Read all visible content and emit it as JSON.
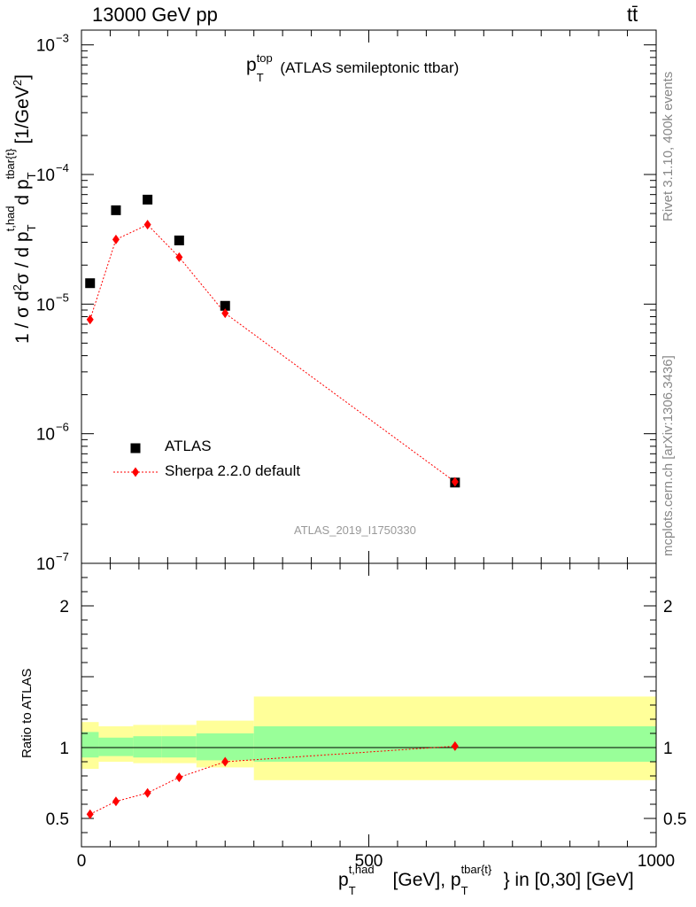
{
  "header": {
    "energy_label": "13000 GeV pp",
    "process_label": "tt̄"
  },
  "annotation": {
    "var": "p",
    "sub": "T",
    "sup": "top",
    "desc": "(ATLAS semileptonic ttbar)"
  },
  "side_labels": {
    "rivet": "Rivet 3.1.10,  400k events",
    "mcplots": "mcplots.cern.ch [arXiv:1306.3436]"
  },
  "analysis_id": "ATLAS_2019_I1750330",
  "axes": {
    "main_ylabel": {
      "p1": "1 / σ d",
      "s1": "2",
      "p2": "σ / d p",
      "sup_a": "t,had",
      "sub_a": "T",
      "p3": " d p",
      "sup_b": "tbar{t}",
      "sub_b": "T",
      "p4": " [1/GeV",
      "s2": "2",
      "p5": "]"
    },
    "ratio_ylabel": "Ratio to ATLAS",
    "xlabel": {
      "p1": "p",
      "sup1": "t,had",
      "sub1": "T",
      "p2": " [GeV], p",
      "sup2": "tbar{t}",
      "sub2": "T",
      "p3": "} in [0,30] [GeV]"
    }
  },
  "legend": {
    "data_label": "ATLAS",
    "mc_label": "Sherpa 2.2.0 default"
  },
  "colors": {
    "data": "#000000",
    "mc": "#ff0000",
    "band_inner": "#99ff99",
    "band_outer": "#ffff99"
  },
  "chart_data": [
    {
      "type": "scatter",
      "panel": "main",
      "scale_y": "log",
      "xlim": [
        0,
        1000
      ],
      "ylim": [
        1e-07,
        0.0013
      ],
      "y_ticks": [
        1e-07,
        1e-06,
        1e-05,
        0.0001,
        0.001
      ],
      "y_tick_labels": [
        {
          "base": "10",
          "exp": "−7"
        },
        {
          "base": "10",
          "exp": "−6"
        },
        {
          "base": "10",
          "exp": "−5"
        },
        {
          "base": "10",
          "exp": "−4"
        },
        {
          "base": "10",
          "exp": "−3"
        }
      ],
      "series": [
        {
          "name": "ATLAS",
          "marker": "square",
          "x": [
            15,
            60,
            115,
            170,
            250,
            650
          ],
          "y": [
            1.45e-05,
            5.3e-05,
            6.4e-05,
            3.1e-05,
            9.7e-06,
            4.2e-07
          ]
        },
        {
          "name": "Sherpa 2.2.0 default",
          "marker": "diamond",
          "line": "dotted",
          "x": [
            15,
            60,
            115,
            170,
            250,
            650
          ],
          "y": [
            7.6e-06,
            3.15e-05,
            4.1e-05,
            2.3e-05,
            8.5e-06,
            4.25e-07
          ]
        }
      ]
    },
    {
      "type": "line",
      "panel": "ratio",
      "xlim": [
        0,
        1000
      ],
      "ylim": [
        0.3,
        2.3
      ],
      "x_ticks": [
        0,
        500,
        1000
      ],
      "x_tick_labels": [
        "0",
        "500",
        "1000"
      ],
      "y_ticks": [
        0.5,
        1,
        2
      ],
      "y_tick_labels": [
        "0.5",
        "1",
        "2"
      ],
      "bands": [
        {
          "x0": 0,
          "x1": 30,
          "inner": [
            0.93,
            1.11
          ],
          "outer": [
            0.85,
            1.18
          ]
        },
        {
          "x0": 30,
          "x1": 90,
          "inner": [
            0.94,
            1.07
          ],
          "outer": [
            0.9,
            1.15
          ]
        },
        {
          "x0": 90,
          "x1": 140,
          "inner": [
            0.93,
            1.08
          ],
          "outer": [
            0.89,
            1.16
          ]
        },
        {
          "x0": 140,
          "x1": 200,
          "inner": [
            0.93,
            1.08
          ],
          "outer": [
            0.89,
            1.16
          ]
        },
        {
          "x0": 200,
          "x1": 300,
          "inner": [
            0.91,
            1.1
          ],
          "outer": [
            0.86,
            1.19
          ]
        },
        {
          "x0": 300,
          "x1": 1000,
          "inner": [
            0.9,
            1.15
          ],
          "outer": [
            0.77,
            1.36
          ]
        }
      ],
      "series": [
        {
          "name": "Sherpa 2.2.0 default",
          "marker": "diamond",
          "x": [
            15,
            60,
            115,
            170,
            250,
            650
          ],
          "y": [
            0.53,
            0.62,
            0.68,
            0.79,
            0.9,
            1.01
          ],
          "err": [
            0.02,
            0.01,
            0.01,
            0.01,
            0.01,
            0.025
          ]
        }
      ]
    }
  ]
}
